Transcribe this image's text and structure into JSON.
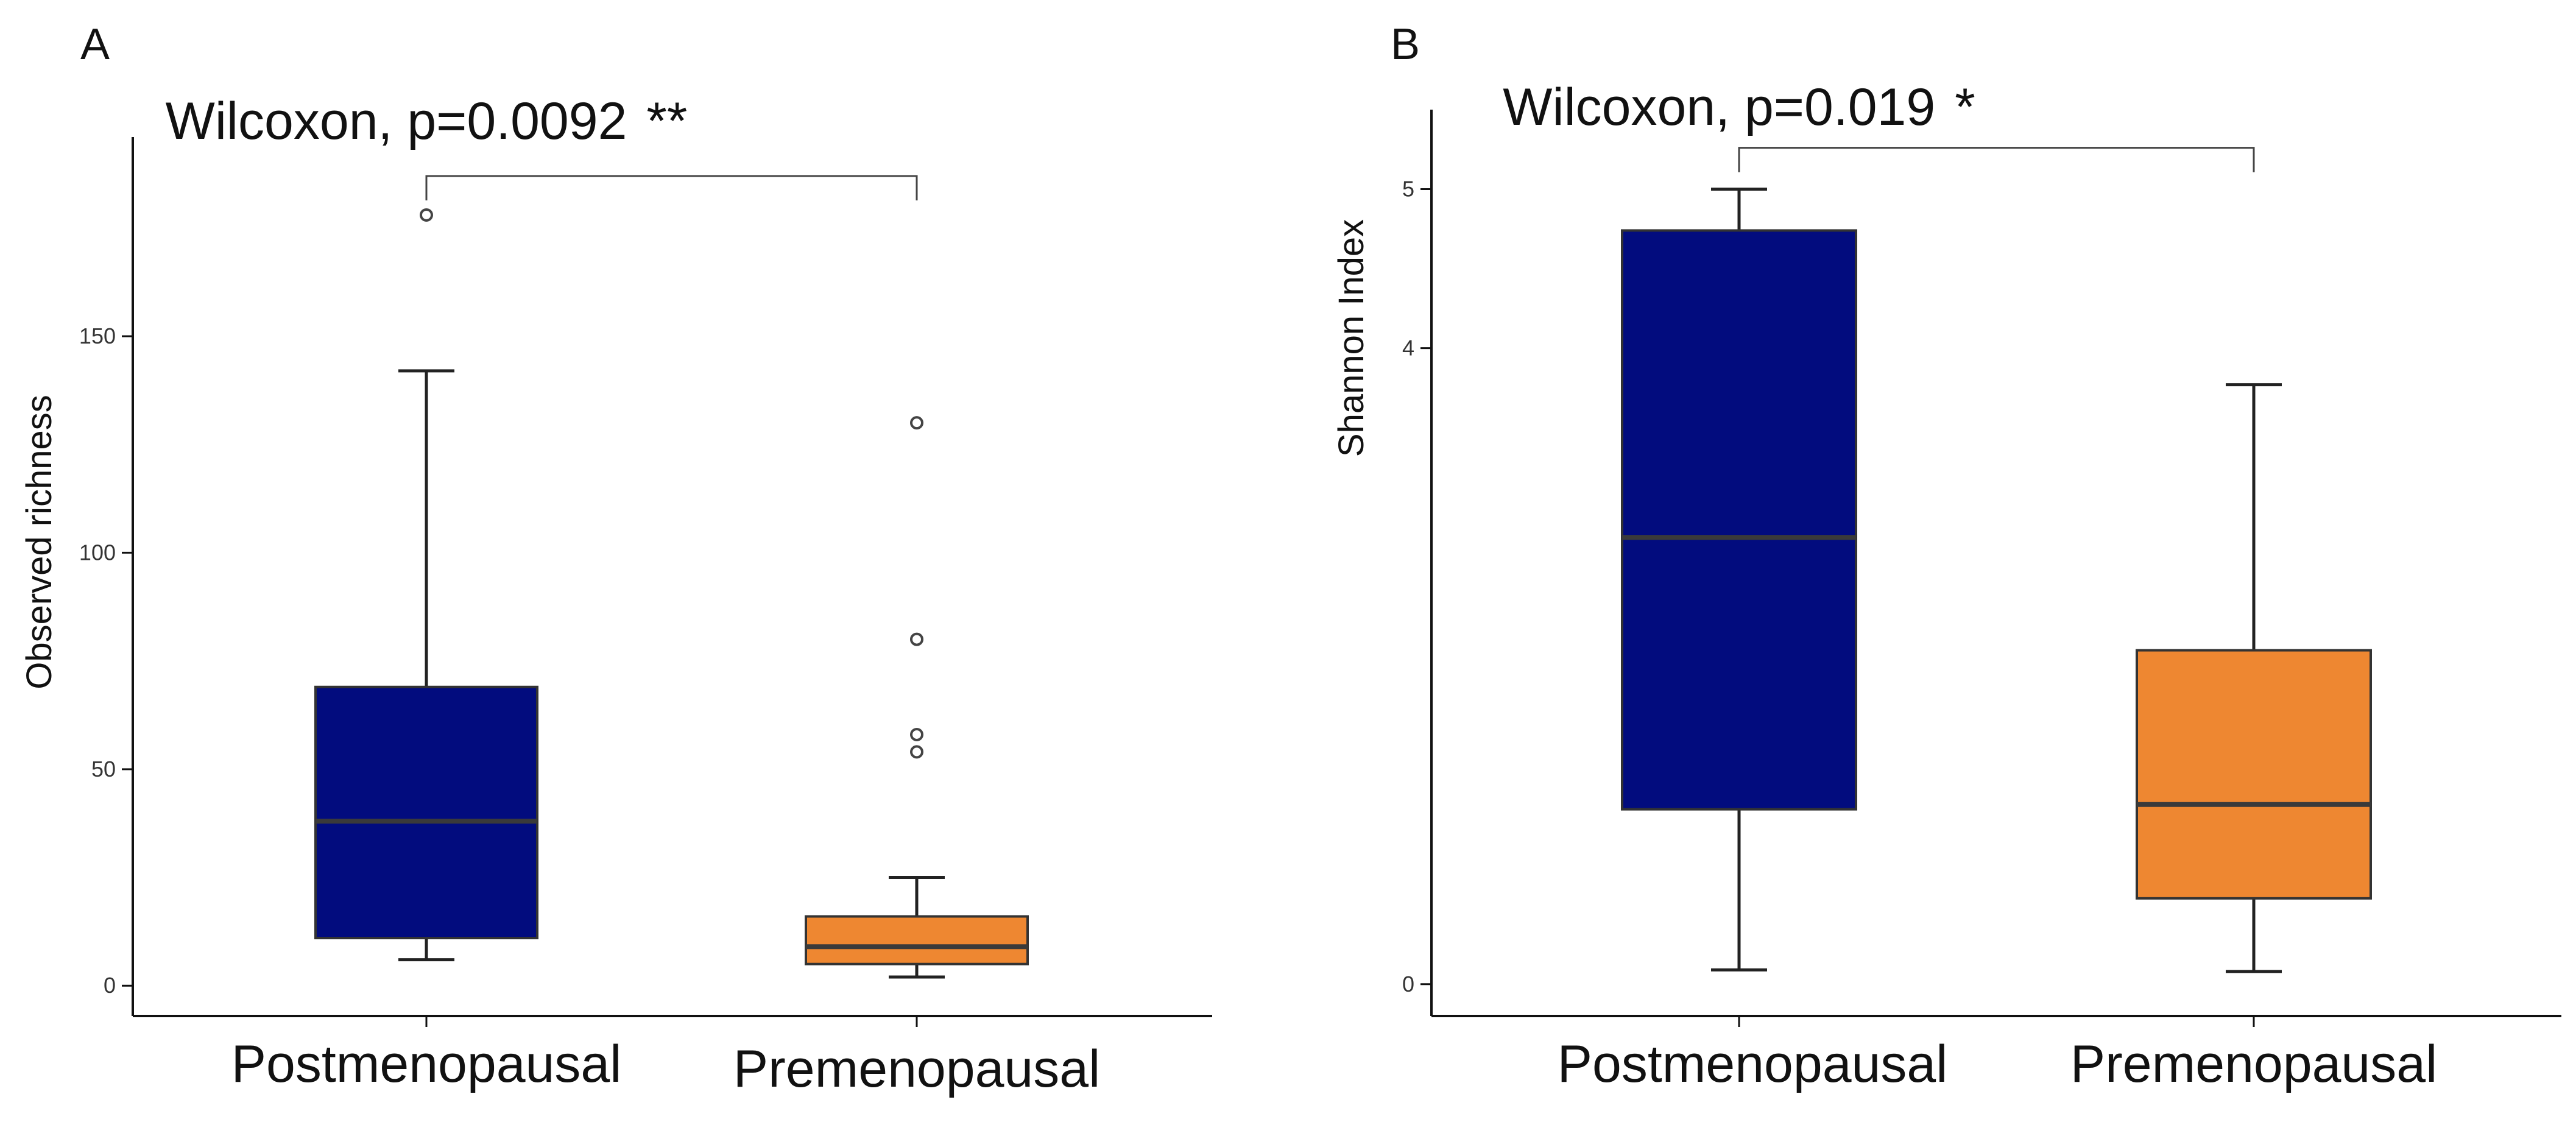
{
  "chart_data": [
    {
      "panel": "A",
      "type": "boxplot",
      "ylabel": "Observed richness",
      "xlabel": "",
      "ylim": [
        -7,
        196
      ],
      "yticks": [
        0,
        50,
        100,
        150
      ],
      "categories": [
        "Postmenopausal",
        "Premenopausal"
      ],
      "colors": [
        "#020C7E",
        "#EE8731"
      ],
      "boxes": [
        {
          "category": "Postmenopausal",
          "whisker_low": 6,
          "q1": 11,
          "median": 38,
          "q3": 69,
          "whisker_high": 142,
          "outliers": [
            178
          ]
        },
        {
          "category": "Premenopausal",
          "whisker_low": 2,
          "q1": 5,
          "median": 9,
          "q3": 16,
          "whisker_high": 25,
          "outliers": [
            54,
            58,
            80,
            130
          ]
        }
      ],
      "significance": {
        "label": "Wilcoxon, p=0.0092",
        "stars": "**",
        "bracket_y": 187
      }
    },
    {
      "panel": "B",
      "type": "boxplot",
      "ylabel": "Shannon Index",
      "xlabel": "",
      "ylim": [
        -0.2,
        5.5
      ],
      "yticks": [
        0,
        4,
        5
      ],
      "categories": [
        "Postmenopausal",
        "Premenopausal"
      ],
      "colors": [
        "#020C7E",
        "#EE8731"
      ],
      "boxes": [
        {
          "category": "Postmenopausal",
          "whisker_low": 0.09,
          "q1": 1.1,
          "median": 2.81,
          "q3": 4.74,
          "whisker_high": 5.0,
          "outliers": []
        },
        {
          "category": "Premenopausal",
          "whisker_low": 0.08,
          "q1": 0.54,
          "median": 1.13,
          "q3": 2.1,
          "whisker_high": 3.77,
          "outliers": []
        }
      ],
      "significance": {
        "label": "Wilcoxon, p=0.019",
        "stars": "*",
        "bracket_y": 5.26
      }
    }
  ]
}
